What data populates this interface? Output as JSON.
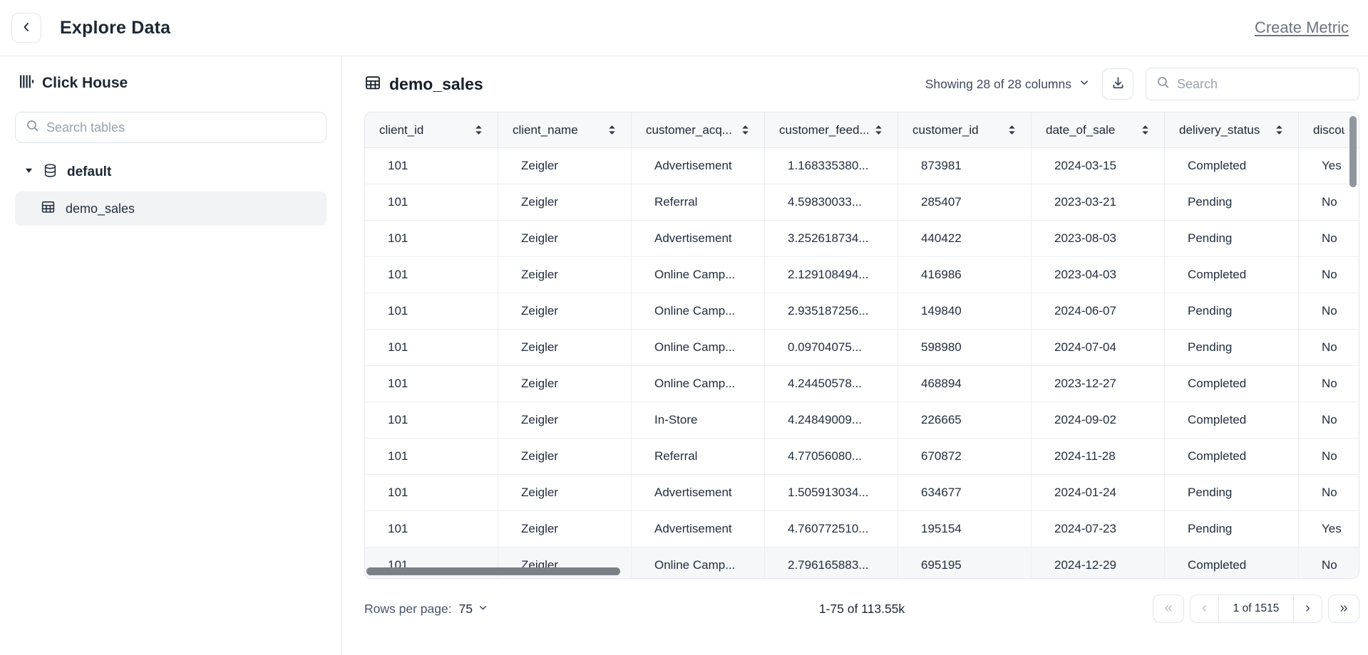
{
  "header": {
    "title": "Explore Data",
    "create_metric_label": "Create Metric"
  },
  "sidebar": {
    "source_name": "Click House",
    "search_placeholder": "Search tables",
    "database_name": "default",
    "tables": [
      "demo_sales"
    ]
  },
  "main": {
    "title": "demo_sales",
    "columns_summary": "Showing 28 of 28 columns",
    "search_placeholder": "Search",
    "table": {
      "columns": [
        "client_id",
        "client_name",
        "customer_acq...",
        "customer_feed...",
        "customer_id",
        "date_of_sale",
        "delivery_status",
        "discou"
      ],
      "rows": [
        [
          "101",
          "Zeigler",
          "Advertisement",
          "1.168335380...",
          "873981",
          "2024-03-15",
          "Completed",
          "Yes"
        ],
        [
          "101",
          "Zeigler",
          "Referral",
          "4.59830033...",
          "285407",
          "2023-03-21",
          "Pending",
          "No"
        ],
        [
          "101",
          "Zeigler",
          "Advertisement",
          "3.252618734...",
          "440422",
          "2023-08-03",
          "Pending",
          "No"
        ],
        [
          "101",
          "Zeigler",
          "Online Camp...",
          "2.129108494...",
          "416986",
          "2023-04-03",
          "Completed",
          "No"
        ],
        [
          "101",
          "Zeigler",
          "Online Camp...",
          "2.935187256...",
          "149840",
          "2024-06-07",
          "Pending",
          "No"
        ],
        [
          "101",
          "Zeigler",
          "Online Camp...",
          "0.09704075...",
          "598980",
          "2024-07-04",
          "Pending",
          "No"
        ],
        [
          "101",
          "Zeigler",
          "Online Camp...",
          "4.24450578...",
          "468894",
          "2023-12-27",
          "Completed",
          "No"
        ],
        [
          "101",
          "Zeigler",
          "In-Store",
          "4.24849009...",
          "226665",
          "2024-09-02",
          "Completed",
          "No"
        ],
        [
          "101",
          "Zeigler",
          "Referral",
          "4.77056080...",
          "670872",
          "2024-11-28",
          "Completed",
          "No"
        ],
        [
          "101",
          "Zeigler",
          "Advertisement",
          "1.505913034...",
          "634677",
          "2024-01-24",
          "Pending",
          "No"
        ],
        [
          "101",
          "Zeigler",
          "Advertisement",
          "4.760772510...",
          "195154",
          "2024-07-23",
          "Pending",
          "Yes"
        ],
        [
          "101",
          "Zeigler",
          "Online Camp...",
          "2.796165883...",
          "695195",
          "2024-12-29",
          "Completed",
          "No"
        ]
      ]
    },
    "footer": {
      "rows_per_page_label": "Rows per page:",
      "rows_per_page_value": "75",
      "range_text": "1-75 of 113.55k",
      "page_text": "1 of 1515",
      "first_glyph": "«",
      "prev_glyph": "‹",
      "next_glyph": "›",
      "last_glyph": "»"
    }
  },
  "colors": {
    "text_dark": "#1c2733",
    "text_muted": "#98a1ad",
    "border": "#e4e7ec",
    "table_header_bg": "#f7f8f9",
    "selected_item_bg": "#f2f3f5"
  }
}
